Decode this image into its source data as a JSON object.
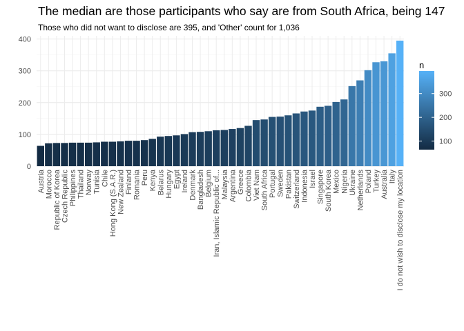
{
  "chart_data": {
    "type": "bar",
    "title": "The median are those participants who say are from South Africa, being 147",
    "subtitle": "Those who did not want to disclose are 395, and 'Other' count for 1,036",
    "xlabel": "",
    "ylabel": "",
    "ylim": [
      0,
      410
    ],
    "y_ticks": [
      0,
      100,
      200,
      300,
      400
    ],
    "grid": true,
    "categories": [
      "Austria",
      "Morocco",
      "Republic of Korea",
      "Czech Republic",
      "Philippines",
      "Thailand",
      "Norway",
      "Tunisia",
      "Chile",
      "Hong Kong (S.A.R.)",
      "New Zealand",
      "Finland",
      "Romania",
      "Peru",
      "Kenya",
      "Belarus",
      "Hungary",
      "Egypt",
      "Ireland",
      "Denmark",
      "Bangladesh",
      "Belgium",
      "Iran, Islamic Republic of...",
      "Malaysia",
      "Argentina",
      "Greece",
      "Colombia",
      "Viet Nam",
      "South Africa",
      "Portugal",
      "Sweden",
      "Pakistan",
      "Switzerland",
      "Indonesia",
      "Israel",
      "Singapore",
      "South Korea",
      "Mexico",
      "Nigeria",
      "Ukraine",
      "Netherlands",
      "Poland",
      "Turkey",
      "Australia",
      "Italy",
      "I do not wish to disclose my location"
    ],
    "values": [
      64,
      72,
      73,
      73,
      74,
      74,
      74,
      75,
      77,
      77,
      78,
      80,
      80,
      82,
      86,
      93,
      95,
      97,
      101,
      107,
      108,
      110,
      113,
      114,
      117,
      120,
      127,
      145,
      147,
      155,
      156,
      160,
      166,
      172,
      175,
      187,
      190,
      202,
      210,
      252,
      270,
      302,
      327,
      330,
      355,
      395
    ],
    "legend": {
      "title": "n",
      "position": "right",
      "type": "colorbar",
      "ticks": [
        100,
        200,
        300
      ],
      "color_low": "#132B43",
      "color_high": "#56B1F7"
    }
  }
}
